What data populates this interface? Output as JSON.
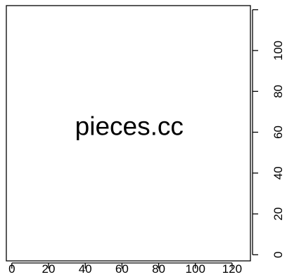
{
  "chart_data": {
    "type": "scatter",
    "title": "",
    "xlabel": "",
    "ylabel": "",
    "xlim": [
      -3,
      130
    ],
    "ylim": [
      -3,
      122
    ],
    "x_ticks": [
      0,
      20,
      40,
      60,
      80,
      100,
      120
    ],
    "x_tick_labels": [
      "0",
      "20",
      "40",
      "60",
      "80",
      "100",
      "120"
    ],
    "y_ticks": [
      0,
      20,
      40,
      60,
      80,
      100,
      120
    ],
    "y_tick_labels": [
      "0",
      "20",
      "40",
      "60",
      "80",
      "100",
      ""
    ],
    "y_axis_side": "right",
    "grid": false,
    "legend": "none",
    "annotations": [
      {
        "text": "pieces.cc",
        "x": 64,
        "y": 62
      }
    ],
    "colors": {
      "axis": "#000000",
      "text": "#000000",
      "background": "#ffffff"
    }
  }
}
